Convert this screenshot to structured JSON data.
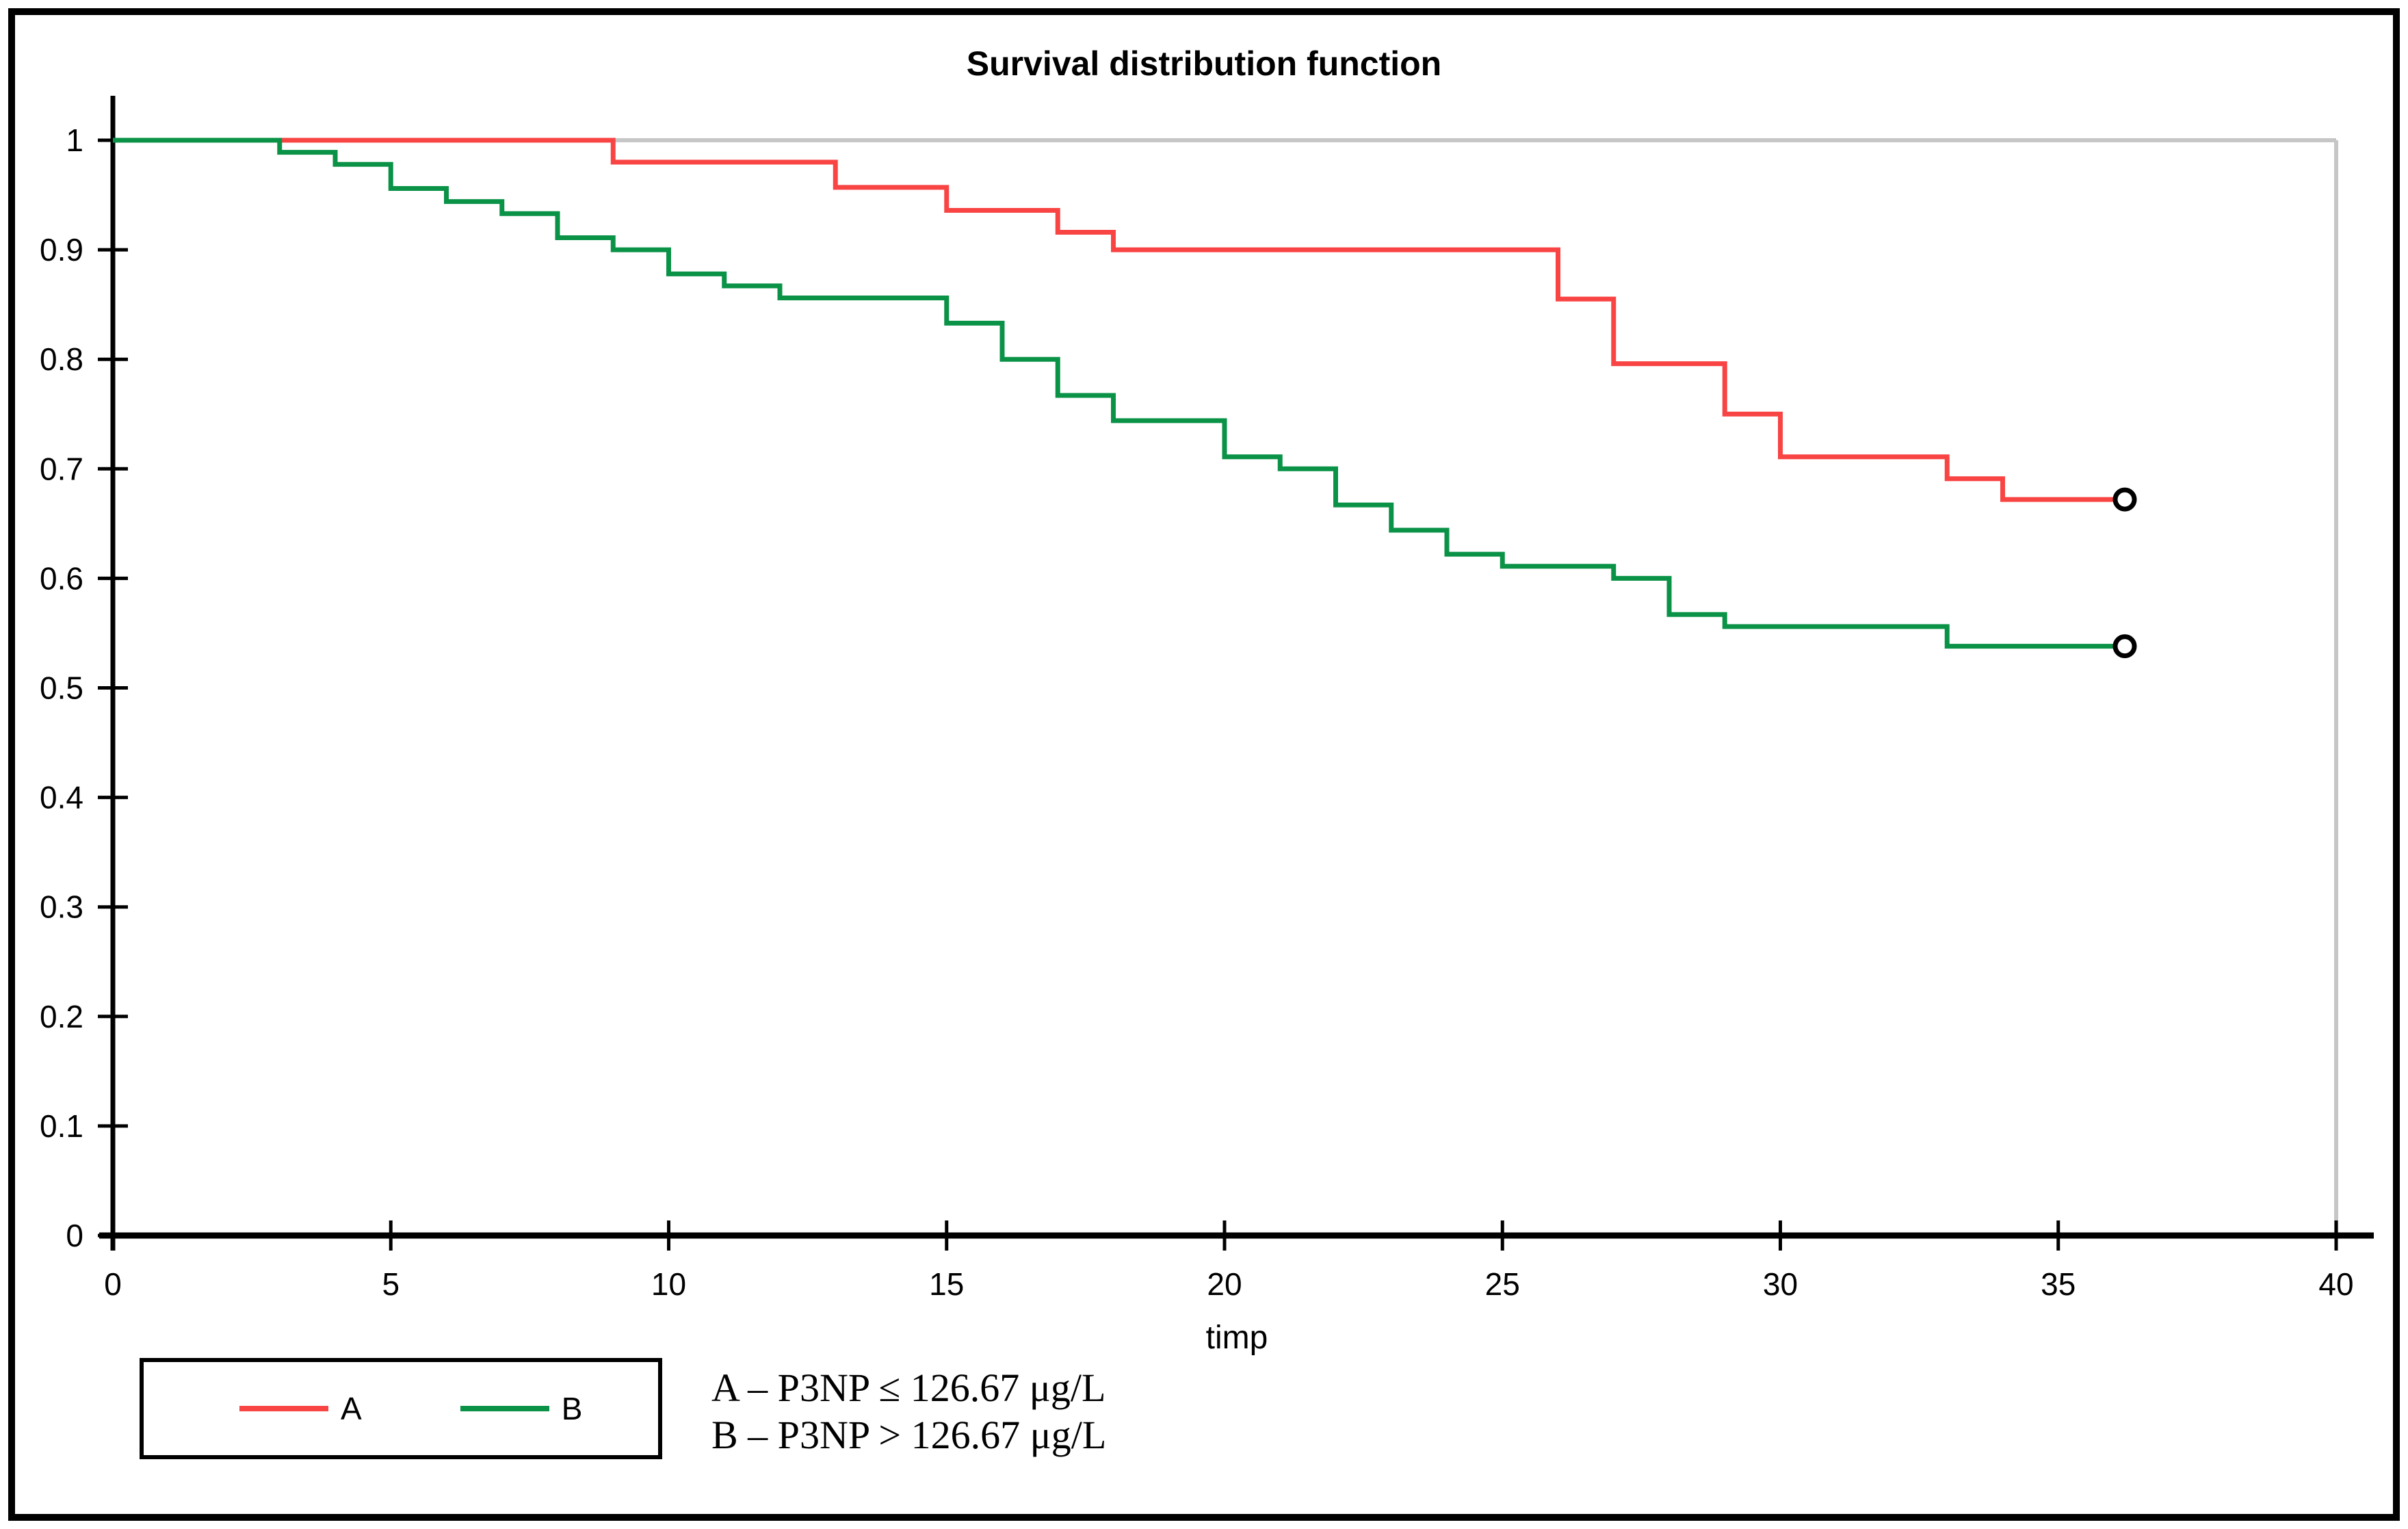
{
  "figure": {
    "title": "Survival distribution function",
    "x_axis_label": "timp",
    "legend": {
      "items": [
        {
          "label": "A",
          "color_key": "series_a"
        },
        {
          "label": "B",
          "color_key": "series_b"
        }
      ]
    },
    "annotation": {
      "line1": "A – P3NP ≤ 126.67 μg/L",
      "line2": "B – P3NP > 126.67 μg/L"
    },
    "colors": {
      "series_a": "#f94444",
      "series_b": "#0a9247",
      "gridline": "#c6c6c6",
      "axis": "#000000",
      "censor_fill": "#ffffff",
      "censor_stroke": "#000000"
    }
  },
  "chart_data": {
    "type": "line",
    "subtype": "kaplan-meier-step",
    "title": "Survival distribution function",
    "xlabel": "timp",
    "ylabel": "",
    "xlim": [
      0,
      40
    ],
    "ylim": [
      0,
      1
    ],
    "x_ticks": [
      0,
      5,
      10,
      15,
      20,
      25,
      30,
      35,
      40
    ],
    "y_ticks": [
      0,
      0.1,
      0.2,
      0.3,
      0.4,
      0.5,
      0.6,
      0.7,
      0.8,
      0.9,
      1
    ],
    "y_tick_labels": [
      "0",
      "0.1",
      "0.2",
      "0.3",
      "0.4",
      "0.5",
      "0.6",
      "0.7",
      "0.8",
      "0.9",
      "1"
    ],
    "grid": "top-and-right-plot-border-only",
    "legend_position": "bottom-left-box",
    "series": [
      {
        "name": "A",
        "color_key": "series_a",
        "start": [
          0,
          1
        ],
        "steps": [
          [
            9,
            0.98
          ],
          [
            13,
            0.957
          ],
          [
            15,
            0.936
          ],
          [
            17,
            0.916
          ],
          [
            18,
            0.9
          ],
          [
            26,
            0.855
          ],
          [
            27,
            0.796
          ],
          [
            29,
            0.75
          ],
          [
            30,
            0.711
          ],
          [
            33,
            0.691
          ],
          [
            34,
            0.672
          ]
        ],
        "censor_end": {
          "t": 36,
          "v": 0.672
        }
      },
      {
        "name": "B",
        "color_key": "series_b",
        "start": [
          0,
          1
        ],
        "steps": [
          [
            3,
            0.989
          ],
          [
            4,
            0.978
          ],
          [
            5,
            0.956
          ],
          [
            6,
            0.944
          ],
          [
            7,
            0.933
          ],
          [
            8,
            0.911
          ],
          [
            9,
            0.9
          ],
          [
            10,
            0.878
          ],
          [
            11,
            0.867
          ],
          [
            12,
            0.856
          ],
          [
            15,
            0.833
          ],
          [
            16,
            0.8
          ],
          [
            17,
            0.767
          ],
          [
            18,
            0.744
          ],
          [
            20,
            0.711
          ],
          [
            21,
            0.7
          ],
          [
            22,
            0.667
          ],
          [
            23,
            0.644
          ],
          [
            24,
            0.622
          ],
          [
            25,
            0.611
          ],
          [
            27,
            0.6
          ],
          [
            28,
            0.567
          ],
          [
            29,
            0.556
          ],
          [
            33,
            0.538
          ]
        ],
        "censor_end": {
          "t": 36,
          "v": 0.538
        }
      }
    ]
  }
}
